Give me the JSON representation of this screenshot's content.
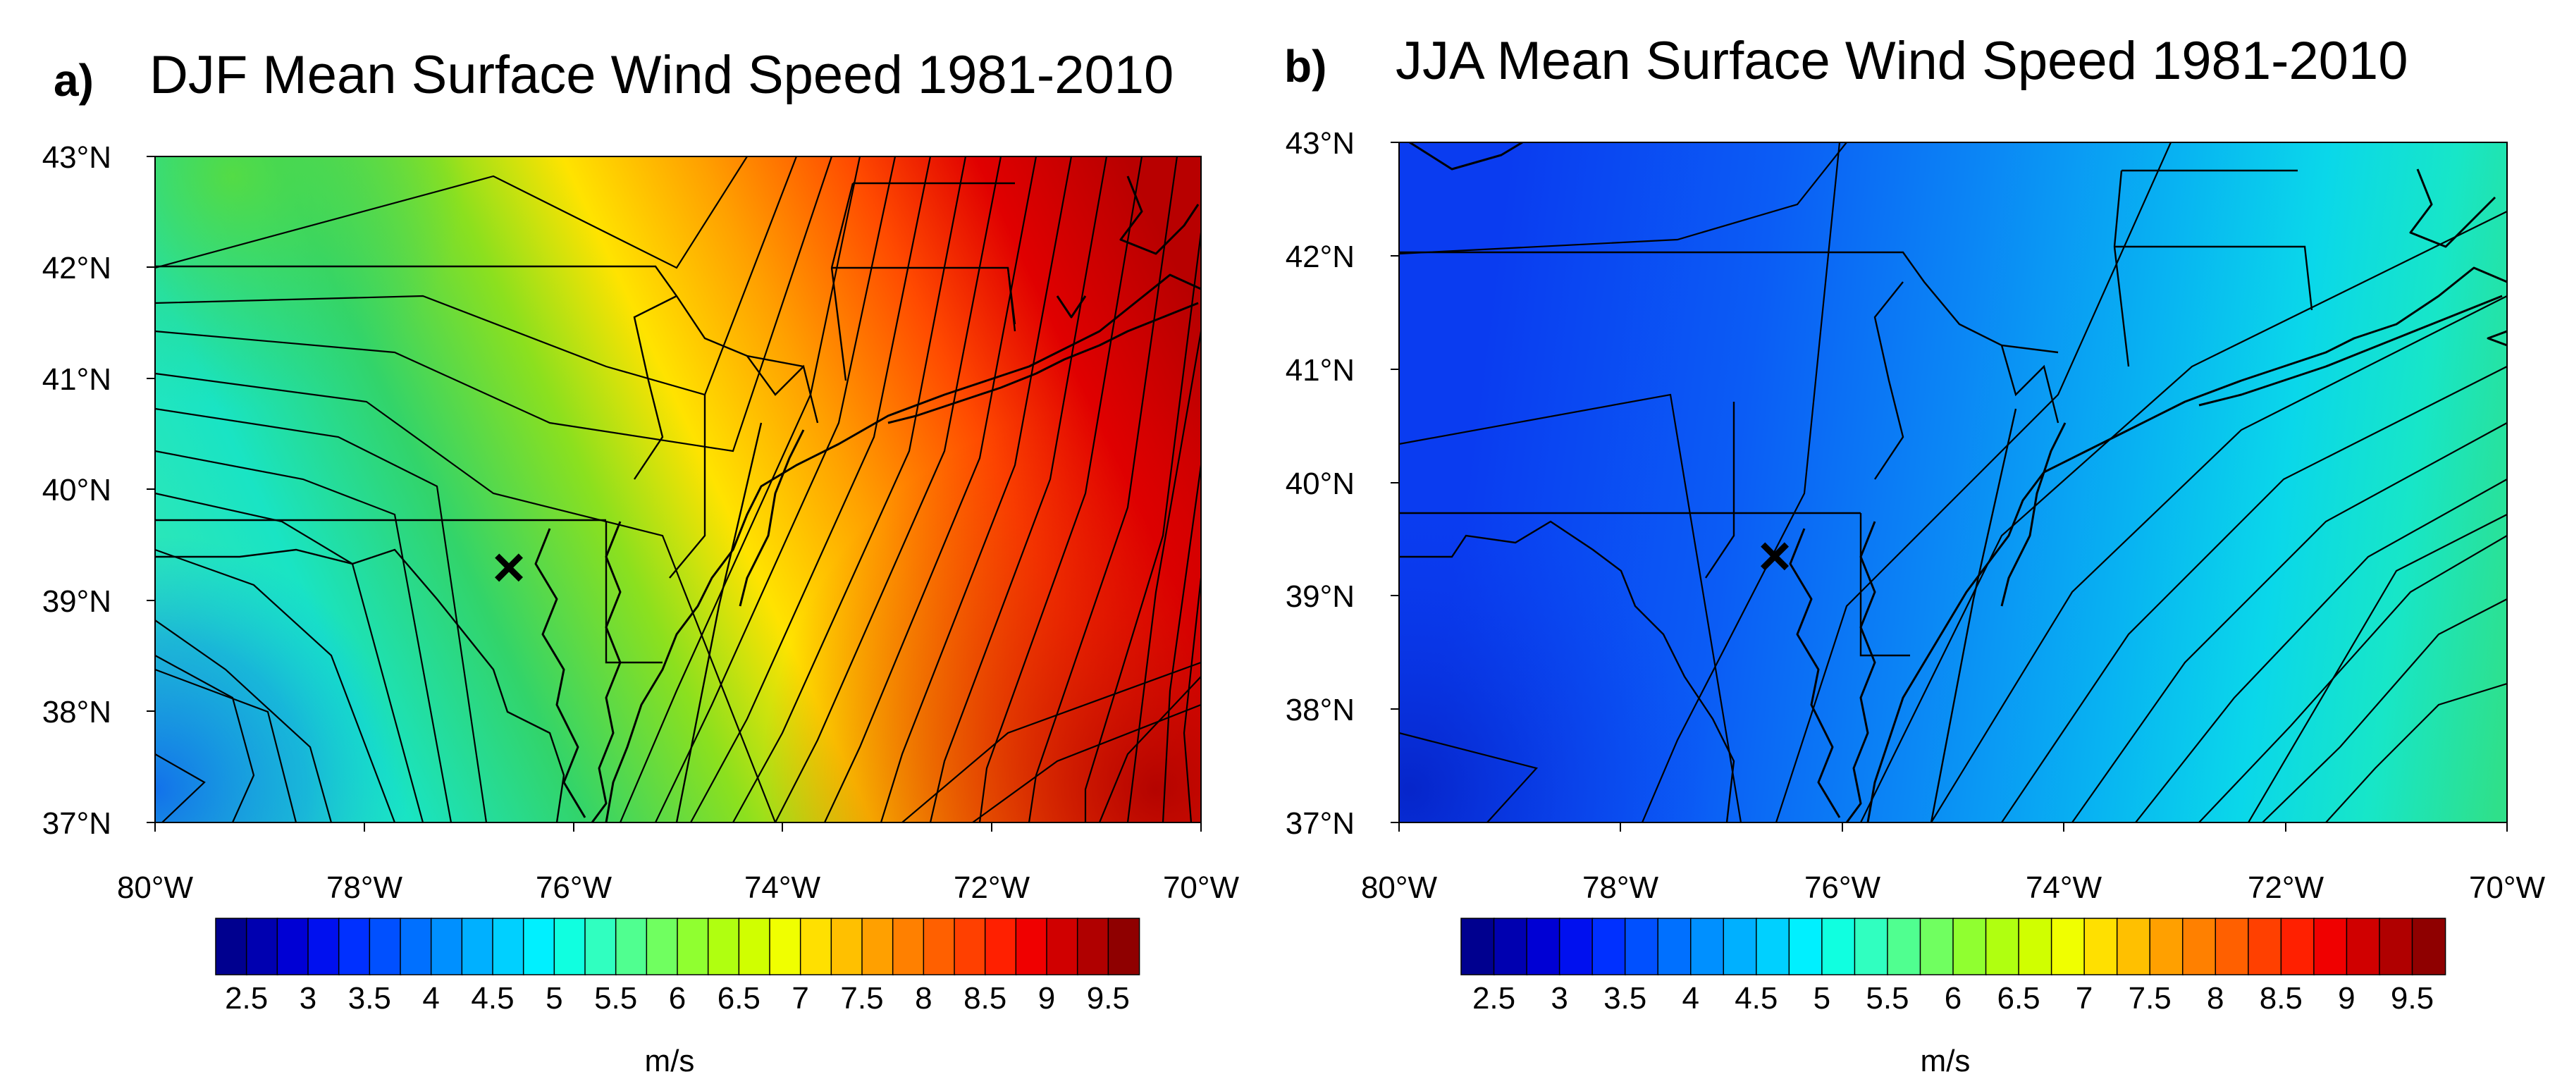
{
  "panels": [
    {
      "letter": "a)",
      "title": "DJF Mean Surface Wind Speed 1981-2010",
      "season": "DJF",
      "field_colors": [
        "#39e8b0",
        "#19e4c4",
        "#32d46a",
        "#8ce01e",
        "#ffe300",
        "#ffa000",
        "#ff4a00",
        "#e00000",
        "#b80000"
      ],
      "y_ticks": [
        "43°N",
        "42°N",
        "41°N",
        "40°N",
        "39°N",
        "38°N",
        "37°N"
      ],
      "x_ticks": [
        "80°W",
        "78°W",
        "76°W",
        "74°W",
        "72°W",
        "70°W"
      ]
    },
    {
      "letter": "b)",
      "title": "JJA Mean Surface Wind Speed 1981-2010",
      "season": "JJA",
      "field_colors": [
        "#0a3cf0",
        "#0b5cf5",
        "#0b88f5",
        "#08b2f2",
        "#0ad7ea",
        "#17e6c8",
        "#2fe08a"
      ],
      "y_ticks": [
        "43°N",
        "42°N",
        "41°N",
        "40°N",
        "39°N",
        "38°N",
        "37°N"
      ],
      "x_ticks": [
        "80°W",
        "78°W",
        "76°W",
        "74°W",
        "72°W",
        "70°W"
      ]
    }
  ],
  "colorbar": {
    "colors": [
      "#00008f",
      "#0000b0",
      "#0000d4",
      "#0010ef",
      "#0030ff",
      "#0050ff",
      "#0070ff",
      "#0090ff",
      "#00b0ff",
      "#00d0ff",
      "#00f0ff",
      "#10ffe0",
      "#30ffc0",
      "#50ff90",
      "#70ff60",
      "#90ff30",
      "#b0ff10",
      "#d0ff00",
      "#f0ff00",
      "#ffe000",
      "#ffc000",
      "#ffa000",
      "#ff8000",
      "#ff6000",
      "#ff4000",
      "#ff2000",
      "#f00000",
      "#d00000",
      "#b00000",
      "#8f0000"
    ],
    "labels": [
      "2.5",
      "3",
      "3.5",
      "4",
      "4.5",
      "5",
      "5.5",
      "6",
      "6.5",
      "7",
      "7.5",
      "8",
      "8.5",
      "9",
      "9.5"
    ],
    "unit": "m/s"
  },
  "marker": {
    "symbol": "×",
    "lon": -76.6,
    "lat": 39.3
  },
  "colors": {
    "contour": "#000000",
    "background": "#ffffff"
  }
}
